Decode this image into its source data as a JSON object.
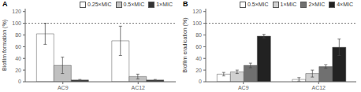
{
  "chart_data": [
    {
      "type": "bar",
      "title": "A",
      "ylabel": "Biofilm formation (%)",
      "categories": [
        "AC9",
        "AC12"
      ],
      "series": [
        {
          "name": "0.25×MIC",
          "color": "white",
          "values": [
            82,
            70
          ],
          "errors": [
            18,
            25
          ]
        },
        {
          "name": "0.5×MIC",
          "color": "#c0c0c0",
          "values": [
            28,
            9
          ],
          "errors": [
            14,
            4
          ]
        },
        {
          "name": "1×MIC",
          "color": "#333333",
          "values": [
            3,
            3
          ],
          "errors": [
            1,
            1
          ]
        }
      ],
      "ylim": [
        0,
        125
      ],
      "yticks": [
        0,
        20,
        40,
        60,
        80,
        100,
        120
      ],
      "reference_y": 100,
      "legend": "upper right"
    },
    {
      "type": "bar",
      "title": "B",
      "ylabel": "Biofilm eradication (%)",
      "categories": [
        "AC9",
        "AC12"
      ],
      "series": [
        {
          "name": "0.5×MIC",
          "color": "white",
          "values": [
            13,
            4
          ],
          "errors": [
            3,
            3
          ]
        },
        {
          "name": "1×MIC",
          "color": "#d0d0d0",
          "values": [
            17,
            14
          ],
          "errors": [
            3,
            6
          ]
        },
        {
          "name": "2×MIC",
          "color": "#707070",
          "values": [
            28,
            26
          ],
          "errors": [
            4,
            3
          ]
        },
        {
          "name": "4×MIC",
          "color": "#222222",
          "values": [
            78,
            59
          ],
          "errors": [
            3,
            14
          ]
        }
      ],
      "ylim": [
        0,
        125
      ],
      "yticks": [
        0,
        20,
        40,
        60,
        80,
        100,
        120
      ],
      "reference_y": 100,
      "legend": "upper right"
    }
  ]
}
